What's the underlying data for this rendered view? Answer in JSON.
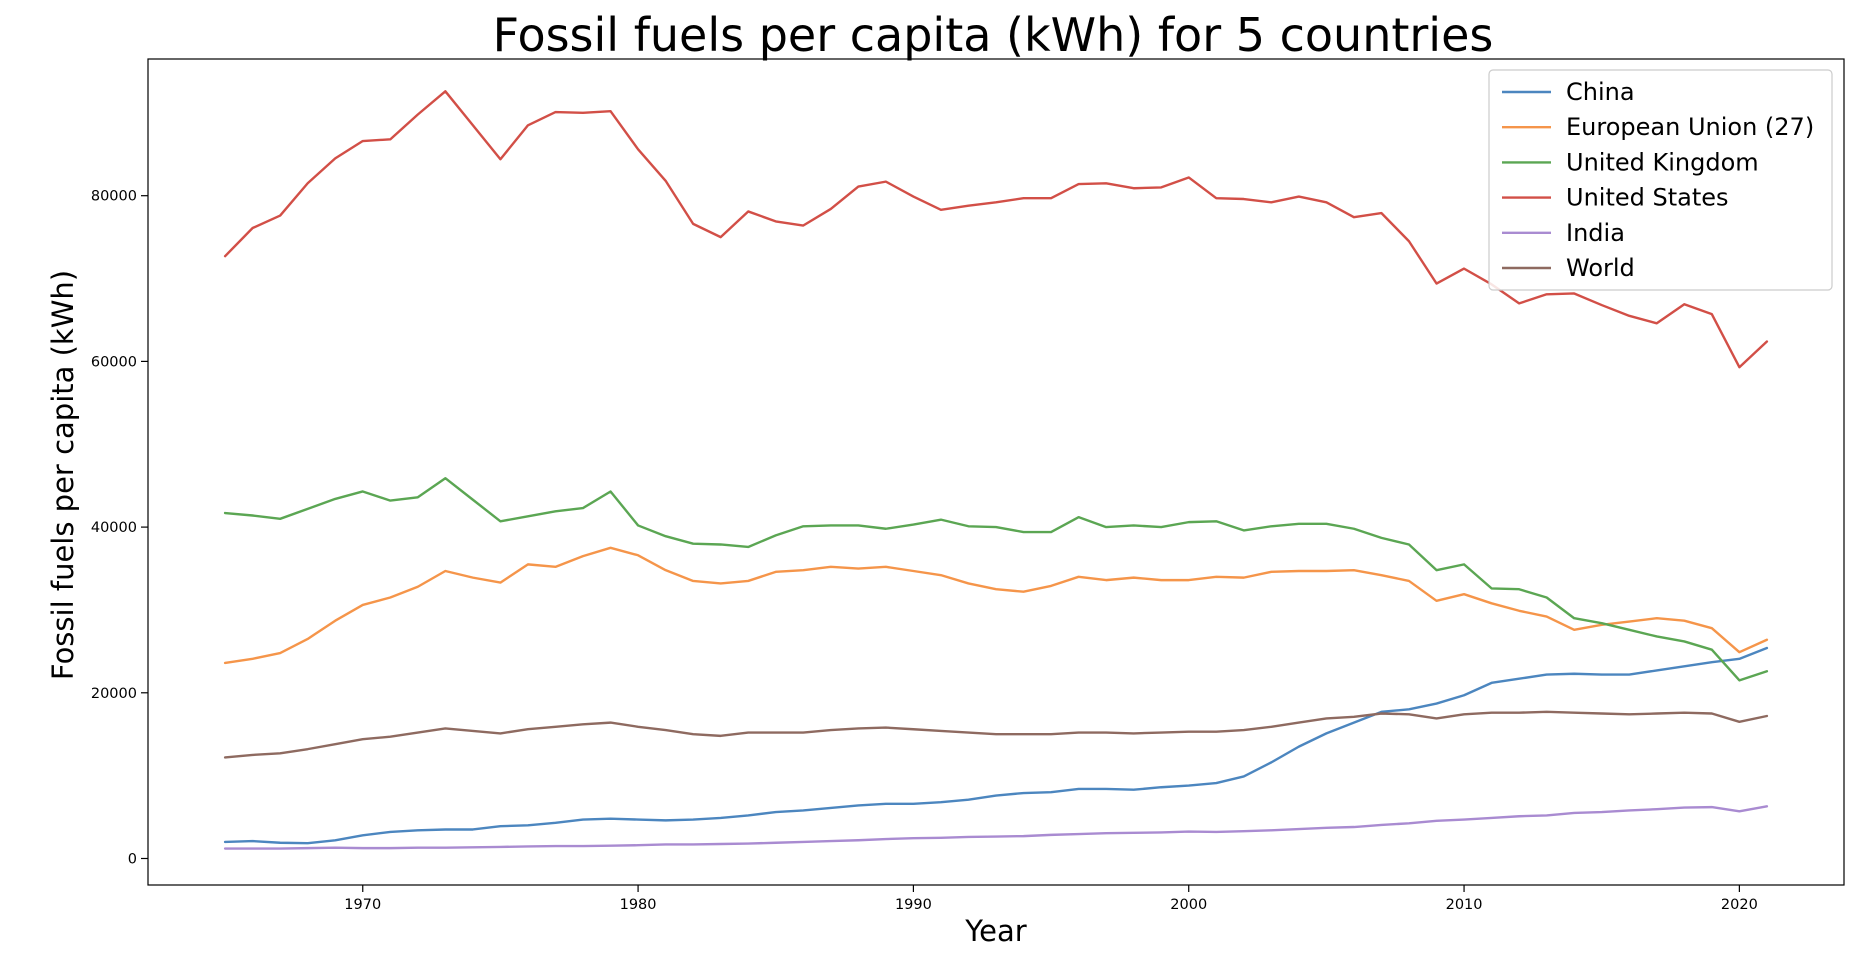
{
  "chart_data": {
    "type": "line",
    "title": "Fossil fuels per capita (kWh) for 5 countries",
    "xlabel": "Year",
    "ylabel": "Fossil fuels per capita (kWh)",
    "xlim": [
      1962.2,
      2023.8
    ],
    "ylim": [
      -3200,
      96500
    ],
    "xticks": [
      1970,
      1980,
      1990,
      2000,
      2010,
      2020
    ],
    "yticks": [
      0,
      20000,
      40000,
      60000,
      80000
    ],
    "grid": false,
    "legend_position": "top-right",
    "x": [
      1965,
      1966,
      1967,
      1968,
      1969,
      1970,
      1971,
      1972,
      1973,
      1974,
      1975,
      1976,
      1977,
      1978,
      1979,
      1980,
      1981,
      1982,
      1983,
      1984,
      1985,
      1986,
      1987,
      1988,
      1989,
      1990,
      1991,
      1992,
      1993,
      1994,
      1995,
      1996,
      1997,
      1998,
      1999,
      2000,
      2001,
      2002,
      2003,
      2004,
      2005,
      2006,
      2007,
      2008,
      2009,
      2010,
      2011,
      2012,
      2013,
      2014,
      2015,
      2016,
      2017,
      2018,
      2019,
      2020,
      2021
    ],
    "series": [
      {
        "name": "China",
        "color": "#4c86bf",
        "values": [
          2000,
          2100,
          1900,
          1850,
          2200,
          2800,
          3200,
          3400,
          3500,
          3500,
          3900,
          4000,
          4300,
          4700,
          4800,
          4700,
          4600,
          4700,
          4900,
          5200,
          5600,
          5800,
          6100,
          6400,
          6600,
          6600,
          6800,
          7100,
          7600,
          7900,
          8000,
          8400,
          8400,
          8300,
          8600,
          8800,
          9100,
          9900,
          11600,
          13500,
          15100,
          16400,
          17700,
          18000,
          18700,
          19700,
          21200,
          21700,
          22200,
          22300,
          22200,
          22200,
          22700,
          23200,
          23700,
          24100,
          25400
        ]
      },
      {
        "name": "European Union (27)",
        "color": "#f5954a",
        "values": [
          23600,
          24100,
          24800,
          26500,
          28700,
          30600,
          31500,
          32800,
          34700,
          33900,
          33300,
          35500,
          35200,
          36500,
          37500,
          36600,
          34800,
          33500,
          33200,
          33500,
          34600,
          34800,
          35200,
          35000,
          35200,
          34700,
          34200,
          33200,
          32500,
          32200,
          32900,
          34000,
          33600,
          33900,
          33600,
          33600,
          34000,
          33900,
          34600,
          34700,
          34700,
          34800,
          34200,
          33500,
          31100,
          31900,
          30800,
          29900,
          29200,
          27600,
          28200,
          28600,
          29000,
          28700,
          27800,
          24900,
          26400
        ]
      },
      {
        "name": "United Kingdom",
        "color": "#5ba653",
        "values": [
          41700,
          41400,
          41000,
          42200,
          43400,
          44300,
          43200,
          43600,
          45900,
          43300,
          40700,
          41300,
          41900,
          42300,
          44300,
          40200,
          38900,
          38000,
          37900,
          37600,
          39000,
          40100,
          40200,
          40200,
          39800,
          40300,
          40900,
          40100,
          40000,
          39400,
          39400,
          41200,
          40000,
          40200,
          40000,
          40600,
          40700,
          39600,
          40100,
          40400,
          40400,
          39800,
          38700,
          37900,
          34800,
          35500,
          32600,
          32500,
          31500,
          29000,
          28400,
          27600,
          26800,
          26200,
          25200,
          21500,
          22600
        ]
      },
      {
        "name": "United States",
        "color": "#d24f47",
        "values": [
          72700,
          76100,
          77600,
          81500,
          84500,
          86600,
          86800,
          89800,
          92600,
          88500,
          84400,
          88500,
          90100,
          90000,
          90200,
          85600,
          81800,
          76600,
          75000,
          78100,
          76900,
          76400,
          78400,
          81100,
          81700,
          79900,
          78300,
          78800,
          79200,
          79700,
          79700,
          81400,
          81500,
          80900,
          81000,
          82200,
          79700,
          79600,
          79200,
          79900,
          79200,
          77400,
          77900,
          74500,
          69400,
          71200,
          69300,
          67000,
          68100,
          68200,
          66800,
          65500,
          64600,
          66900,
          65700,
          59300,
          62400
        ]
      },
      {
        "name": "India",
        "color": "#a98bd1",
        "values": [
          1200,
          1200,
          1200,
          1250,
          1300,
          1250,
          1250,
          1300,
          1300,
          1350,
          1400,
          1450,
          1500,
          1500,
          1550,
          1600,
          1700,
          1700,
          1750,
          1800,
          1900,
          2000,
          2100,
          2200,
          2350,
          2450,
          2500,
          2600,
          2650,
          2700,
          2850,
          2950,
          3050,
          3100,
          3150,
          3250,
          3200,
          3300,
          3400,
          3550,
          3700,
          3800,
          4050,
          4250,
          4550,
          4700,
          4900,
          5100,
          5200,
          5500,
          5600,
          5800,
          5950,
          6150,
          6200,
          5700,
          6300
        ]
      },
      {
        "name": "World",
        "color": "#8e6a60",
        "values": [
          12200,
          12500,
          12700,
          13200,
          13800,
          14400,
          14700,
          15200,
          15700,
          15400,
          15100,
          15600,
          15900,
          16200,
          16400,
          15900,
          15500,
          15000,
          14800,
          15200,
          15200,
          15200,
          15500,
          15700,
          15800,
          15600,
          15400,
          15200,
          15000,
          15000,
          15000,
          15200,
          15200,
          15100,
          15200,
          15300,
          15300,
          15500,
          15900,
          16400,
          16900,
          17100,
          17500,
          17400,
          16900,
          17400,
          17600,
          17600,
          17700,
          17600,
          17500,
          17400,
          17500,
          17600,
          17500,
          16500,
          17200
        ]
      }
    ]
  }
}
